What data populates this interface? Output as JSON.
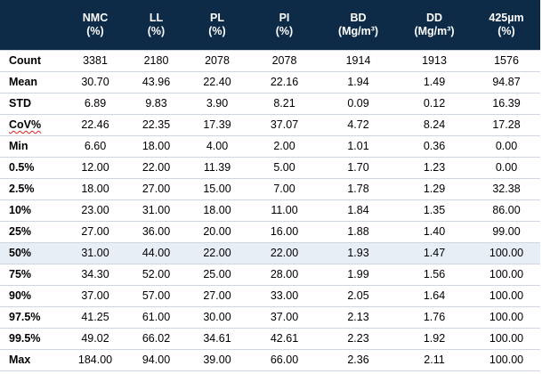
{
  "header": {
    "columns": [
      {
        "line1": "",
        "line2": ""
      },
      {
        "line1": "NMC",
        "line2": "(%)"
      },
      {
        "line1": "LL",
        "line2": "(%)"
      },
      {
        "line1": "PL",
        "line2": "(%)"
      },
      {
        "line1": "PI",
        "line2": "(%)"
      },
      {
        "line1": "BD",
        "line2": "(Mg/m³)"
      },
      {
        "line1": "DD",
        "line2": "(Mg/m³)"
      },
      {
        "line1": "425µm",
        "line2": "(%)"
      }
    ]
  },
  "rows": [
    {
      "label": "Count",
      "values": [
        "3381",
        "2180",
        "2078",
        "2078",
        "1914",
        "1913",
        "1576"
      ]
    },
    {
      "label": "Mean",
      "values": [
        "30.70",
        "43.96",
        "22.40",
        "22.16",
        "1.94",
        "1.49",
        "94.87"
      ]
    },
    {
      "label": "STD",
      "values": [
        "6.89",
        "9.83",
        "3.90",
        "8.21",
        "0.09",
        "0.12",
        "16.39"
      ]
    },
    {
      "label": "CoV%",
      "values": [
        "22.46",
        "22.35",
        "17.39",
        "37.07",
        "4.72",
        "8.24",
        "17.28"
      ]
    },
    {
      "label": "Min",
      "values": [
        "6.60",
        "18.00",
        "4.00",
        "2.00",
        "1.01",
        "0.36",
        "0.00"
      ]
    },
    {
      "label": "0.5%",
      "values": [
        "12.00",
        "22.00",
        "11.39",
        "5.00",
        "1.70",
        "1.23",
        "0.00"
      ]
    },
    {
      "label": "2.5%",
      "values": [
        "18.00",
        "27.00",
        "15.00",
        "7.00",
        "1.78",
        "1.29",
        "32.38"
      ]
    },
    {
      "label": "10%",
      "values": [
        "23.00",
        "31.00",
        "18.00",
        "11.00",
        "1.84",
        "1.35",
        "86.00"
      ]
    },
    {
      "label": "25%",
      "values": [
        "27.00",
        "36.00",
        "20.00",
        "16.00",
        "1.88",
        "1.40",
        "99.00"
      ]
    },
    {
      "label": "50%",
      "values": [
        "31.00",
        "44.00",
        "22.00",
        "22.00",
        "1.93",
        "1.47",
        "100.00"
      ]
    },
    {
      "label": "75%",
      "values": [
        "34.30",
        "52.00",
        "25.00",
        "28.00",
        "1.99",
        "1.56",
        "100.00"
      ]
    },
    {
      "label": "90%",
      "values": [
        "37.00",
        "57.00",
        "27.00",
        "33.00",
        "2.05",
        "1.64",
        "100.00"
      ]
    },
    {
      "label": "97.5%",
      "values": [
        "41.25",
        "61.00",
        "30.00",
        "37.00",
        "2.13",
        "1.76",
        "100.00"
      ]
    },
    {
      "label": "99.5%",
      "values": [
        "49.02",
        "66.02",
        "34.61",
        "42.61",
        "2.23",
        "1.92",
        "100.00"
      ]
    },
    {
      "label": "Max",
      "values": [
        "184.00",
        "94.00",
        "39.00",
        "66.00",
        "2.36",
        "2.11",
        "100.00"
      ]
    }
  ],
  "colors": {
    "header_bg": "#0d2a47",
    "header_text": "#ffffff",
    "highlight_row_bg": "#e8eef6",
    "row_border": "#cfd6df",
    "spellcheck_underline": "#e02020"
  }
}
